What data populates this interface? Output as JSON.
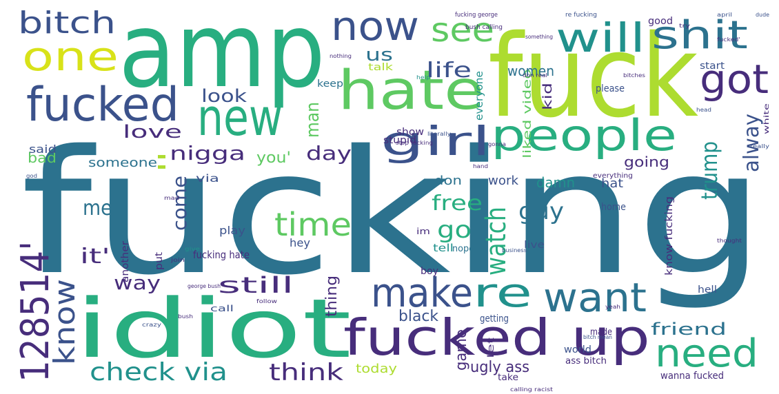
{
  "palette": {
    "purple": "#472d7b",
    "indigo": "#3b528b",
    "teal_blue": "#2c728e",
    "teal": "#21918c",
    "green": "#28ae80",
    "bright_green": "#5ec962",
    "lime": "#addc30",
    "yellow": "#d8e219",
    "background": "#ffffff"
  },
  "words": [
    {
      "text": "fucking",
      "color": "#2c728e"
    },
    {
      "text": "amp",
      "color": "#28ae80"
    },
    {
      "text": "fuck",
      "color": "#addc30"
    },
    {
      "text": "idiot",
      "color": "#28ae80"
    },
    {
      "text": "fucked up",
      "color": "#472d7b"
    },
    {
      "text": "hate",
      "color": "#5ec962"
    },
    {
      "text": "new",
      "color": "#28ae80"
    },
    {
      "text": "fucked",
      "color": "#3b528b"
    },
    {
      "text": "people",
      "color": "#28ae80"
    },
    {
      "text": "now",
      "color": "#3b528b"
    },
    {
      "text": "will",
      "color": "#21918c"
    },
    {
      "text": "girl",
      "color": "#3b528b"
    },
    {
      "text": "shit",
      "color": "#2c728e"
    },
    {
      "text": "one",
      "color": "#d8e219"
    },
    {
      "text": "bitch",
      "color": "#3b528b"
    },
    {
      "text": "see",
      "color": "#5ec962"
    },
    {
      "text": "got",
      "color": "#472d7b"
    },
    {
      "text": "make",
      "color": "#3b528b"
    },
    {
      "text": "re",
      "color": "#21918c"
    },
    {
      "text": "want",
      "color": "#2c728e"
    },
    {
      "text": "need",
      "color": "#28ae80"
    },
    {
      "text": "128514'",
      "color": "#472d7b"
    },
    {
      "text": "know",
      "color": "#3b528b"
    },
    {
      "text": "time",
      "color": "#5ec962"
    },
    {
      "text": "watch",
      "color": "#28ae80"
    },
    {
      "text": "check via",
      "color": "#21918c"
    },
    {
      "text": "think",
      "color": "#472d7b"
    },
    {
      "text": "trump",
      "color": "#21918c"
    },
    {
      "text": "alway",
      "color": "#3b528b"
    },
    {
      "text": "free",
      "color": "#28ae80"
    },
    {
      "text": "guy",
      "color": "#2c728e"
    },
    {
      "text": "go",
      "color": "#28ae80"
    },
    {
      "text": "nigga",
      "color": "#472d7b"
    },
    {
      "text": "come",
      "color": "#3b528b"
    },
    {
      "text": "love",
      "color": "#472d7b"
    },
    {
      "text": "look",
      "color": "#3b528b"
    },
    {
      "text": "life",
      "color": "#3b528b"
    },
    {
      "text": "us",
      "color": "#2c728e"
    },
    {
      "text": "women",
      "color": "#2c728e"
    },
    {
      "text": "way",
      "color": "#472d7b"
    },
    {
      "text": "still",
      "color": "#472d7b"
    },
    {
      "text": "it'",
      "color": "#472d7b"
    },
    {
      "text": "me'",
      "color": "#2c728e"
    },
    {
      "text": "day",
      "color": "#472d7b"
    },
    {
      "text": "man",
      "color": "#5ec962"
    },
    {
      "text": "someone",
      "color": "#2c728e"
    },
    {
      "text": "you'",
      "color": "#5ec962"
    },
    {
      "text": "bad",
      "color": "#5ec962"
    },
    {
      "text": "said",
      "color": "#3b528b"
    },
    {
      "text": "friend",
      "color": "#2c728e"
    },
    {
      "text": "black",
      "color": "#3b528b"
    },
    {
      "text": "thing",
      "color": "#472d7b"
    },
    {
      "text": "game",
      "color": "#472d7b"
    },
    {
      "text": "ugly ass",
      "color": "#472d7b"
    },
    {
      "text": "today",
      "color": "#addc30"
    },
    {
      "text": "going",
      "color": "#472d7b"
    },
    {
      "text": "damn",
      "color": "#21918c"
    },
    {
      "text": "don",
      "color": "#2c728e"
    },
    {
      "text": "work",
      "color": "#3b528b"
    },
    {
      "text": "hat",
      "color": "#3b528b"
    },
    {
      "text": "liked video",
      "color": "#5ec962"
    },
    {
      "text": "kid",
      "color": "#472d7b"
    },
    {
      "text": "everyone",
      "color": "#21918c"
    },
    {
      "text": "show",
      "color": "#472d7b"
    },
    {
      "text": "stupid",
      "color": "#472d7b"
    },
    {
      "text": "talk",
      "color": "#addc30"
    },
    {
      "text": "keep",
      "color": "#2c728e"
    },
    {
      "text": "good",
      "color": "#472d7b"
    },
    {
      "text": "start",
      "color": "#3b528b"
    },
    {
      "text": "please",
      "color": "#3b528b"
    },
    {
      "text": "play",
      "color": "#3b528b"
    },
    {
      "text": "another",
      "color": "#472d7b"
    },
    {
      "text": "fucking hate",
      "color": "#472d7b"
    },
    {
      "text": "hey",
      "color": "#3b528b"
    },
    {
      "text": "tell",
      "color": "#21918c"
    },
    {
      "text": "nope",
      "color": "#2c728e"
    },
    {
      "text": "boy",
      "color": "#472d7b"
    },
    {
      "text": "live",
      "color": "#3b528b"
    },
    {
      "text": "home",
      "color": "#3b528b"
    },
    {
      "text": "know fucking",
      "color": "#472d7b"
    },
    {
      "text": "hell",
      "color": "#3b528b"
    },
    {
      "text": "getting",
      "color": "#3b528b"
    },
    {
      "text": "made",
      "color": "#472d7b"
    },
    {
      "text": "world",
      "color": "#3b528b"
    },
    {
      "text": "wanna fucked",
      "color": "#472d7b"
    },
    {
      "text": "take",
      "color": "#472d7b"
    },
    {
      "text": "ass bitch",
      "color": "#472d7b"
    },
    {
      "text": "via",
      "color": "#3b528b"
    },
    {
      "text": "ll",
      "color": "#addc30"
    },
    {
      "text": "put",
      "color": "#472d7b"
    },
    {
      "text": "im",
      "color": "#472d7b"
    },
    {
      "text": "call",
      "color": "#3b528b"
    },
    {
      "text": "let",
      "color": "#472d7b"
    },
    {
      "text": "everything",
      "color": "#472d7b"
    },
    {
      "text": "fucking george",
      "color": "#472d7b"
    },
    {
      "text": "re fucking",
      "color": "#3b528b"
    },
    {
      "text": "bush calling",
      "color": "#472d7b"
    },
    {
      "text": "something",
      "color": "#472d7b"
    },
    {
      "text": "don real",
      "color": "#472d7b"
    },
    {
      "text": "bitches",
      "color": "#472d7b"
    },
    {
      "text": "literally",
      "color": "#3b528b"
    },
    {
      "text": "business",
      "color": "#3b528b"
    },
    {
      "text": "dude",
      "color": "#3b528b"
    },
    {
      "text": "really",
      "color": "#3b528b"
    },
    {
      "text": "april",
      "color": "#3b528b"
    },
    {
      "text": "try",
      "color": "#472d7b"
    },
    {
      "text": "fucked'",
      "color": "#472d7b"
    },
    {
      "text": "white",
      "color": "#472d7b"
    },
    {
      "text": "head",
      "color": "#3b528b"
    },
    {
      "text": "crazy",
      "color": "#3b528b"
    },
    {
      "text": "god",
      "color": "#3b528b"
    },
    {
      "text": "bush",
      "color": "#472d7b"
    },
    {
      "text": "thought",
      "color": "#472d7b"
    },
    {
      "text": "george bush",
      "color": "#472d7b"
    },
    {
      "text": "bitch mean",
      "color": "#3b528b"
    },
    {
      "text": "nothing",
      "color": "#472d7b"
    },
    {
      "text": "mad",
      "color": "#472d7b"
    },
    {
      "text": "stop fucking",
      "color": "#472d7b"
    },
    {
      "text": "help",
      "color": "#21918c"
    },
    {
      "text": "calling racist",
      "color": "#472d7b"
    },
    {
      "text": "gonna",
      "color": "#472d7b"
    },
    {
      "text": "give",
      "color": "#21918c"
    },
    {
      "text": "join",
      "color": "#472d7b"
    },
    {
      "text": "hand",
      "color": "#472d7b"
    },
    {
      "text": "follow",
      "color": "#472d7b"
    },
    {
      "text": "yeah",
      "color": "#472d7b"
    }
  ]
}
